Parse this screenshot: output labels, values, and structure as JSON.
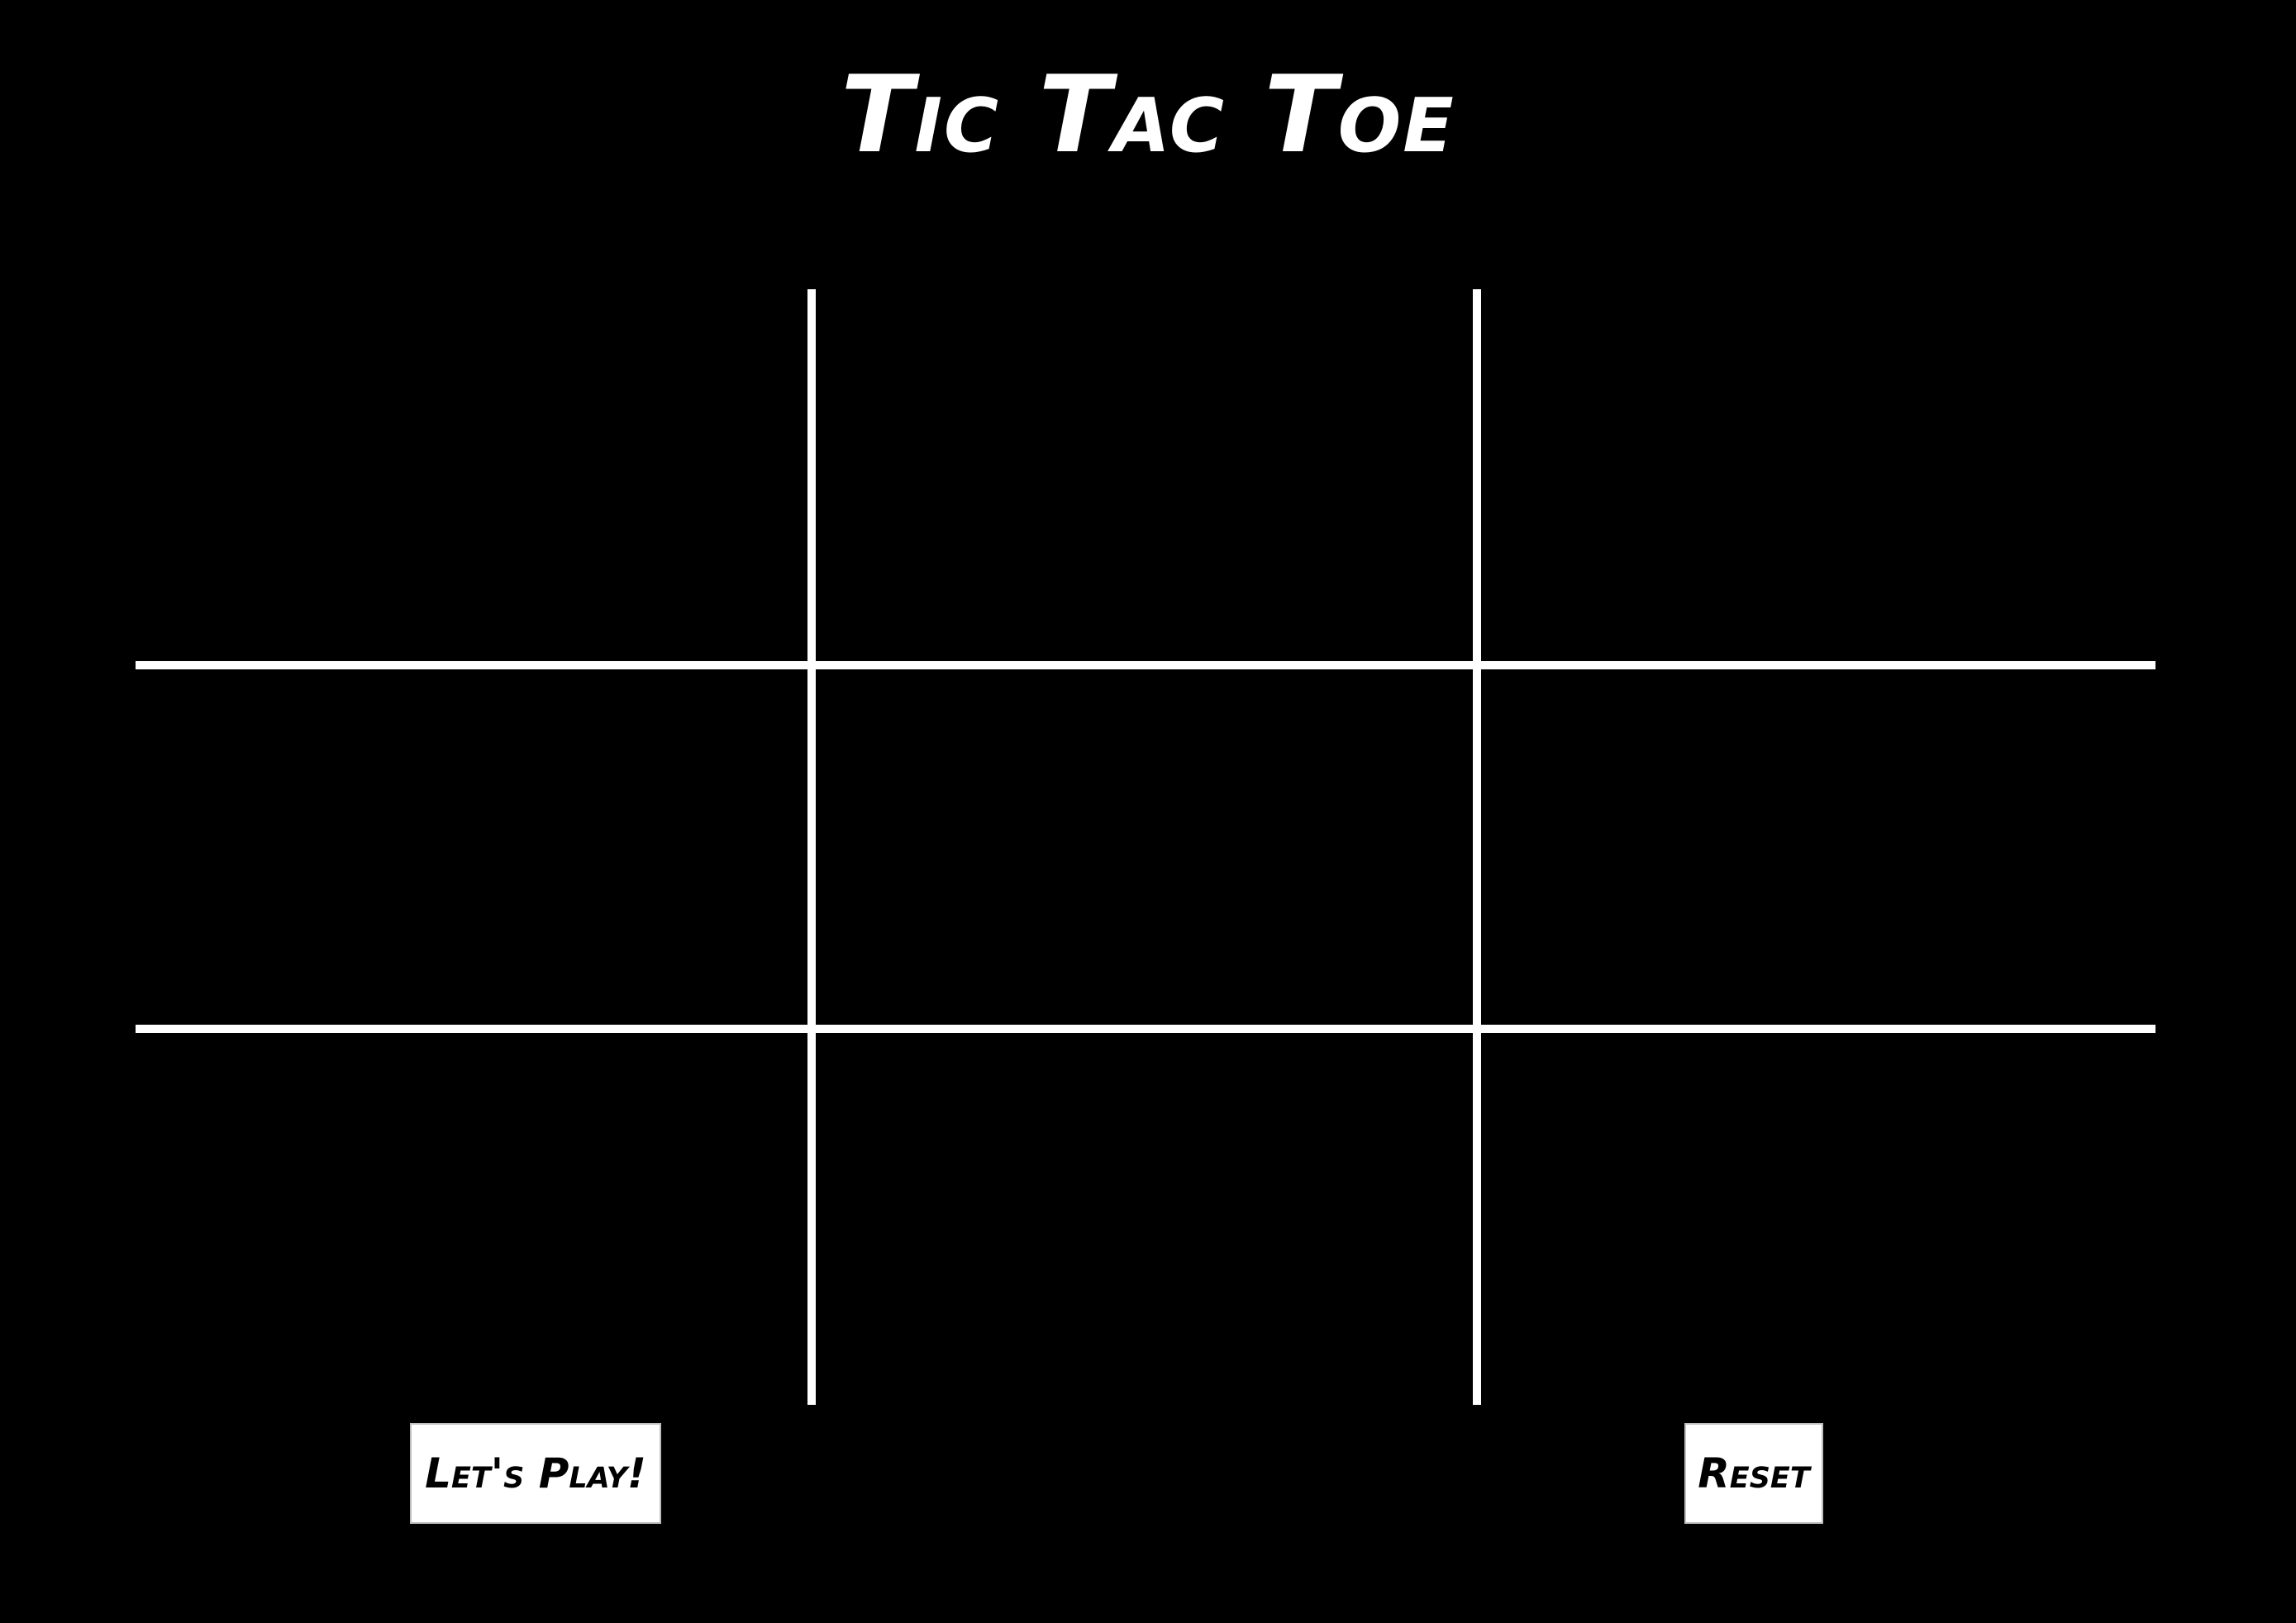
{
  "title": "Tic Tac Toe",
  "board": {
    "cells": [
      "",
      "",
      "",
      "",
      "",
      "",
      "",
      "",
      ""
    ]
  },
  "controls": {
    "play_label": "Let's Play!",
    "reset_label": "Reset"
  },
  "colors": {
    "background": "#000000",
    "foreground": "#ffffff"
  }
}
